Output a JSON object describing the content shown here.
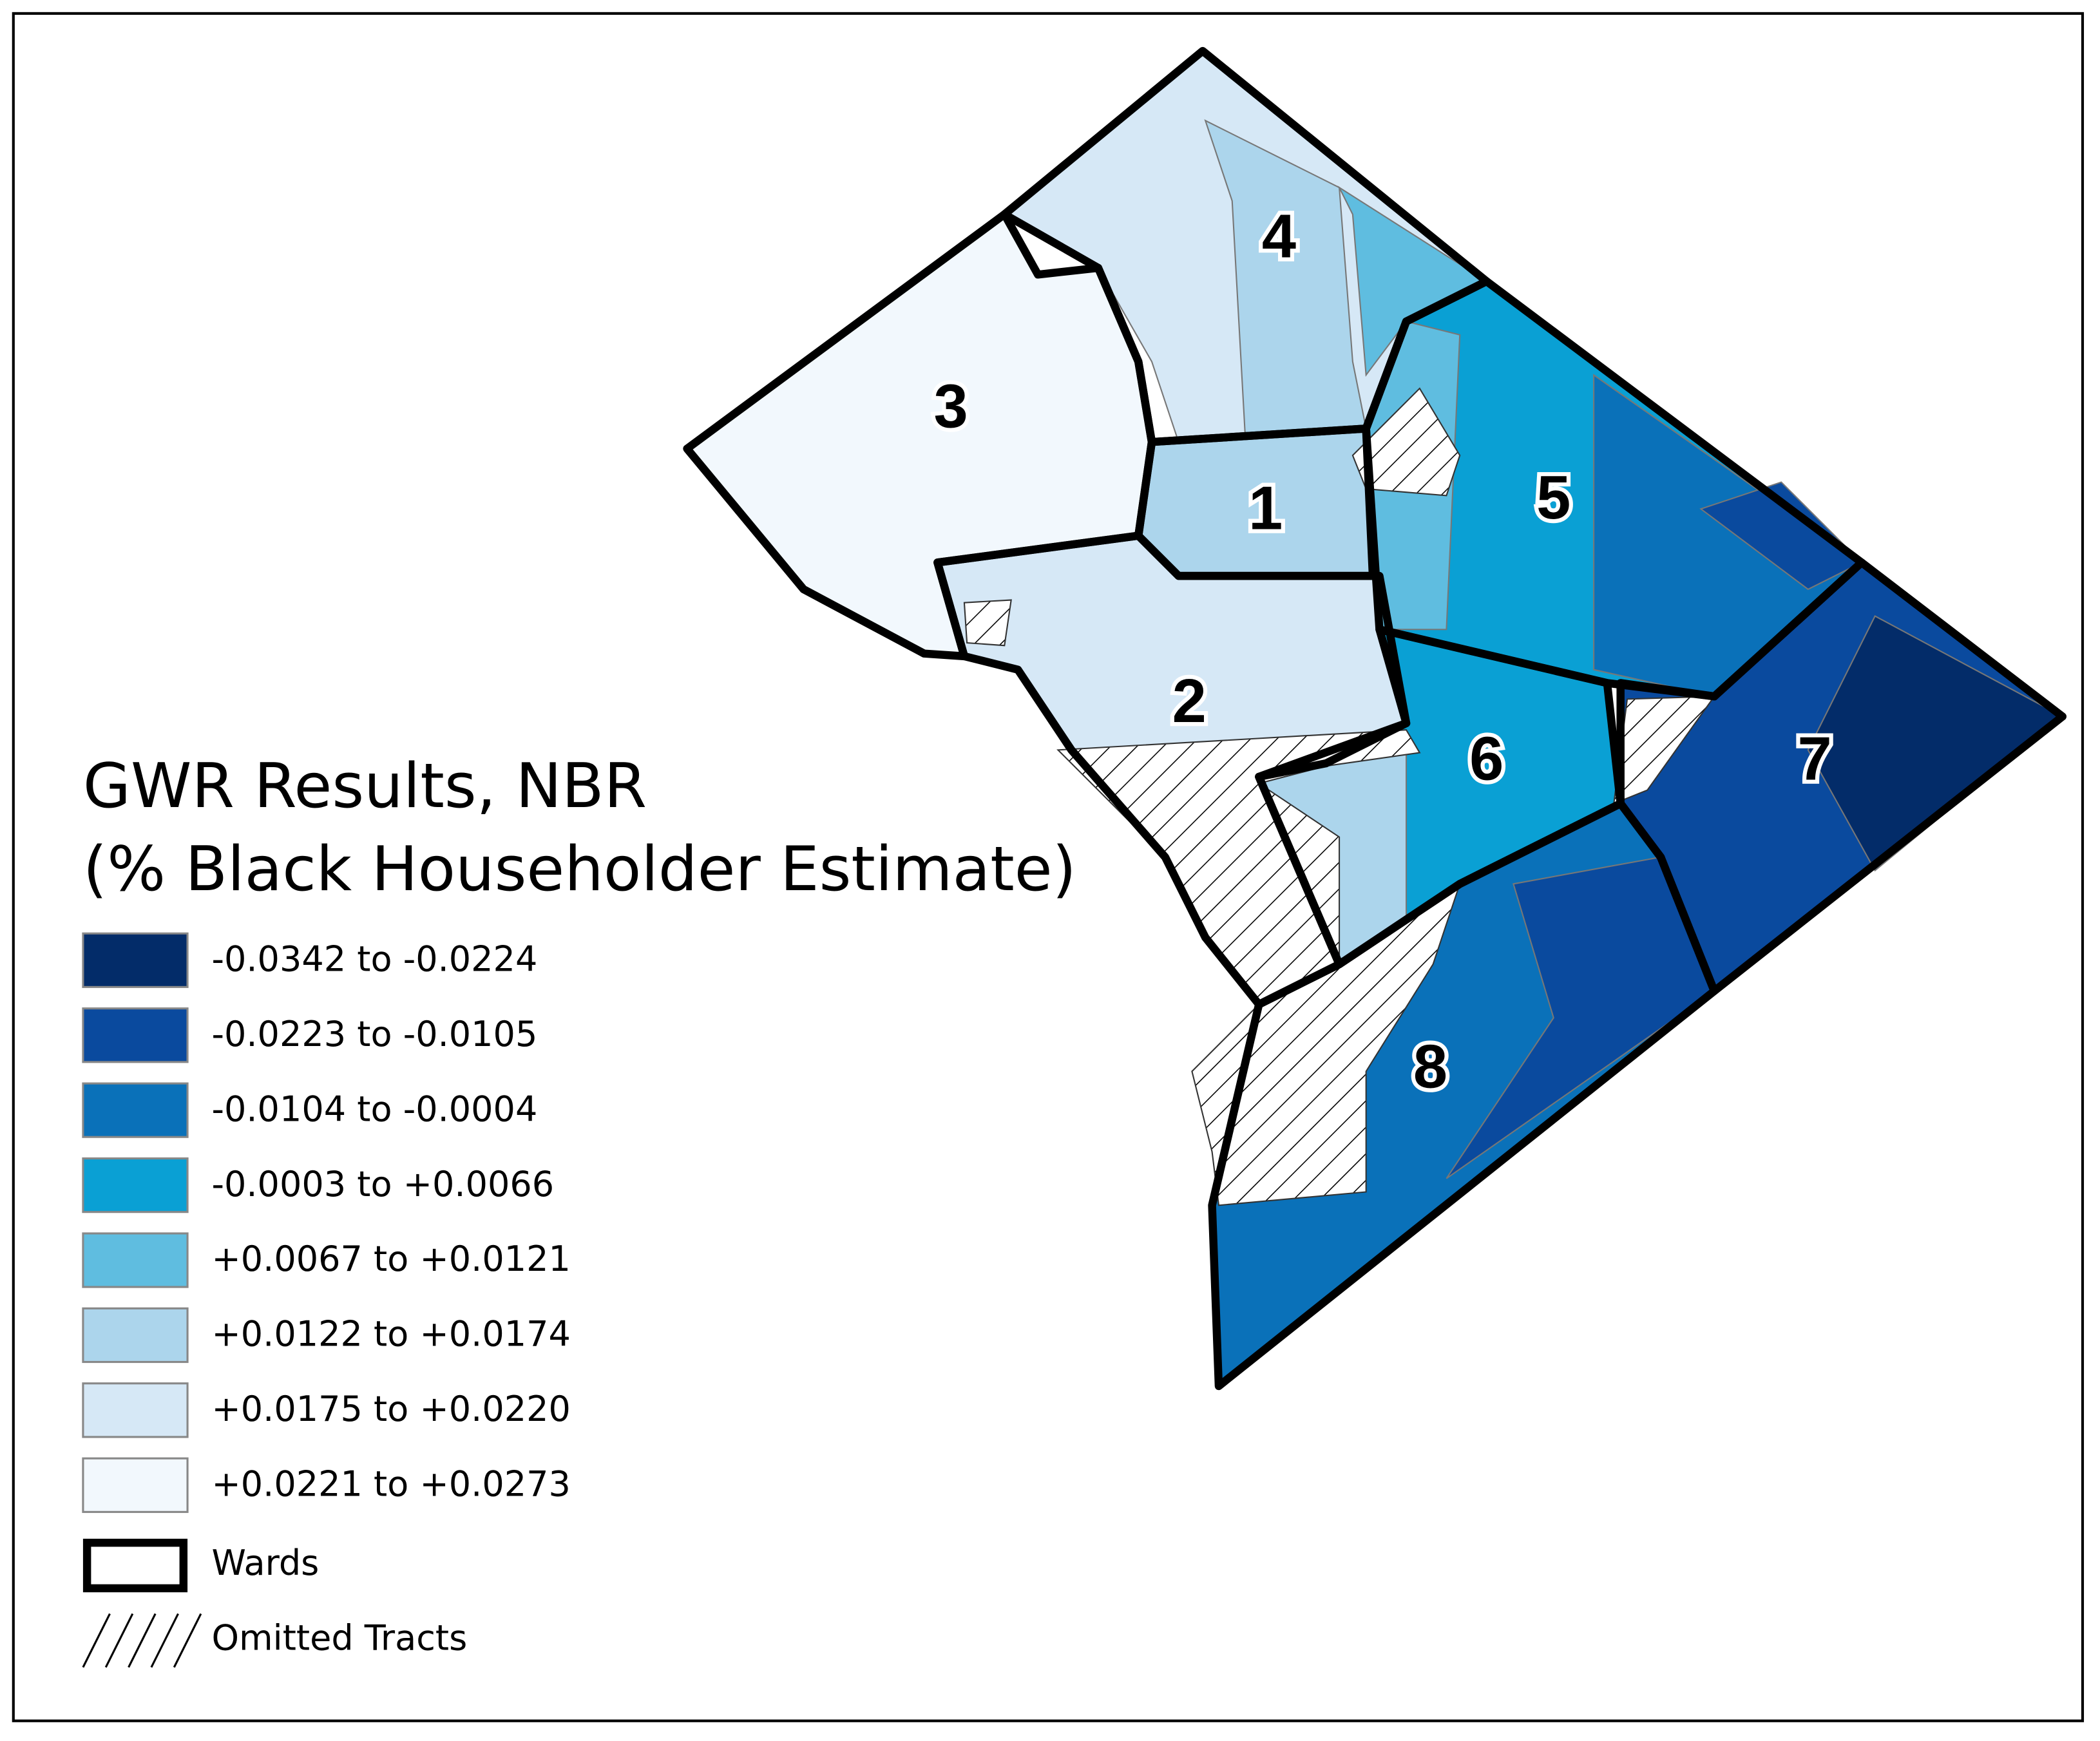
{
  "title_lines": [
    "GWR Results, NBR",
    "(% Black Householder Estimate)"
  ],
  "legend": {
    "classes": [
      {
        "label": "-0.0342 to -0.0224",
        "color": "#032c69"
      },
      {
        "label": "-0.0223 to -0.0105",
        "color": "#0a4a9e"
      },
      {
        "label": "-0.0104 to -0.0004",
        "color": "#0a71b9"
      },
      {
        "label": "-0.0003 to +0.0066",
        "color": "#0aa0d4"
      },
      {
        "label": "+0.0067 to +0.0121",
        "color": "#5fbde0"
      },
      {
        "label": "+0.0122 to +0.0174",
        "color": "#acd5ec"
      },
      {
        "label": "+0.0175 to +0.0220",
        "color": "#d6e8f6"
      },
      {
        "label": "+0.0221 to +0.0273",
        "color": "#f2f8fd"
      }
    ],
    "wards_label": "Wards",
    "omitted_label": "Omitted Tracts"
  },
  "wards": [
    "1",
    "2",
    "3",
    "4",
    "5",
    "6",
    "7",
    "8"
  ]
}
